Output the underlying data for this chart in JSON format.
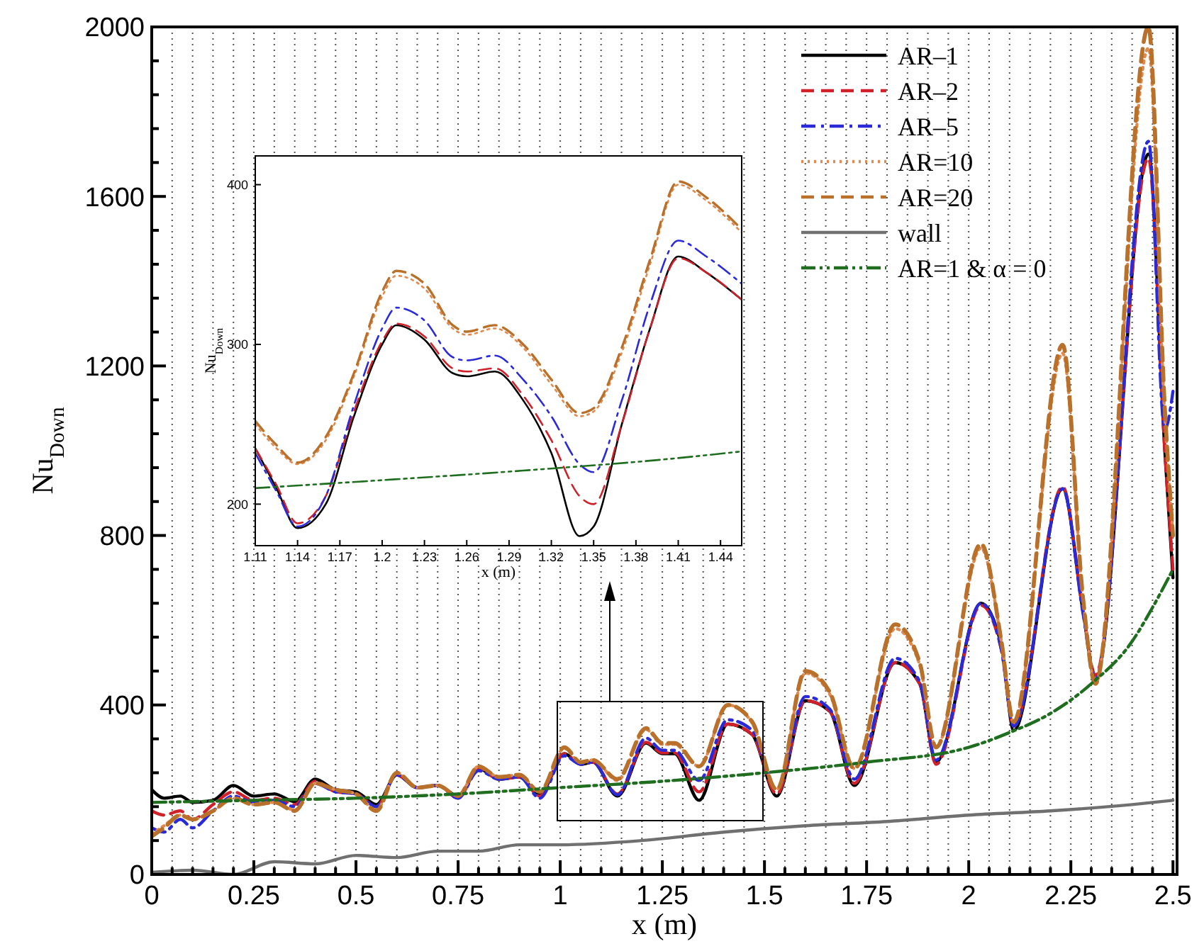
{
  "chart_data": [
    {
      "type": "line",
      "xlabel": "x (m)",
      "ylabel": "Nu$_{Down}$",
      "xlim": [
        0,
        2.51
      ],
      "ylim": [
        0,
        2000
      ],
      "xticks": [
        0,
        {
          "value": 0.05,
          "label": null
        },
        {
          "value": 0.1,
          "label": null
        },
        {
          "value": 0.15,
          "label": null
        },
        {
          "value": 0.2,
          "label": null
        },
        0.25,
        {
          "value": 0.3,
          "label": null
        },
        {
          "value": 0.35,
          "label": null
        },
        {
          "value": 0.4,
          "label": null
        },
        {
          "value": 0.45,
          "label": null
        },
        0.5,
        {
          "value": 0.55,
          "label": null
        },
        {
          "value": 0.6,
          "label": null
        },
        {
          "value": 0.65,
          "label": null
        },
        {
          "value": 0.7,
          "label": null
        },
        0.75,
        {
          "value": 0.8,
          "label": null
        },
        {
          "value": 0.85,
          "label": null
        },
        {
          "value": 0.9,
          "label": null
        },
        {
          "value": 0.95,
          "label": null
        },
        1,
        {
          "value": 1.05,
          "label": null
        },
        {
          "value": 1.1,
          "label": null
        },
        {
          "value": 1.15,
          "label": null
        },
        {
          "value": 1.2,
          "label": null
        },
        1.25,
        {
          "value": 1.3,
          "label": null
        },
        {
          "value": 1.35,
          "label": null
        },
        {
          "value": 1.4,
          "label": null
        },
        {
          "value": 1.45,
          "label": null
        },
        1.5,
        {
          "value": 1.55,
          "label": null
        },
        {
          "value": 1.6,
          "label": null
        },
        {
          "value": 1.65,
          "label": null
        },
        {
          "value": 1.7,
          "label": null
        },
        1.75,
        {
          "value": 1.8,
          "label": null
        },
        {
          "value": 1.85,
          "label": null
        },
        {
          "value": 1.9,
          "label": null
        },
        {
          "value": 1.95,
          "label": null
        },
        2,
        {
          "value": 2.05,
          "label": null
        },
        {
          "value": 2.1,
          "label": null
        },
        {
          "value": 2.15,
          "label": null
        },
        {
          "value": 2.2,
          "label": null
        },
        2.25,
        {
          "value": 2.3,
          "label": null
        },
        {
          "value": 2.35,
          "label": null
        },
        {
          "value": 2.4,
          "label": null
        },
        {
          "value": 2.45,
          "label": null
        },
        2.5
      ],
      "yticks": [
        0,
        {
          "value": 80,
          "label": null
        },
        {
          "value": 160,
          "label": null
        },
        {
          "value": 240,
          "label": null
        },
        {
          "value": 320,
          "label": null
        },
        400,
        {
          "value": 480,
          "label": null
        },
        {
          "value": 560,
          "label": null
        },
        {
          "value": 640,
          "label": null
        },
        {
          "value": 720,
          "label": null
        },
        800,
        {
          "value": 880,
          "label": null
        },
        {
          "value": 960,
          "label": null
        },
        {
          "value": 1040,
          "label": null
        },
        {
          "value": 1120,
          "label": null
        },
        1200,
        {
          "value": 1280,
          "label": null
        },
        {
          "value": 1360,
          "label": null
        },
        {
          "value": 1440,
          "label": null
        },
        {
          "value": 1520,
          "label": null
        },
        1600,
        {
          "value": 1680,
          "label": null
        },
        {
          "value": 1760,
          "label": null
        },
        {
          "value": 1840,
          "label": null
        },
        {
          "value": 1920,
          "label": null
        },
        2000
      ],
      "grid": "x",
      "legend": "top right",
      "series": [
        {
          "name": "AR–1",
          "color": "#000000",
          "line_style": "solid",
          "x": [
            0,
            0.03,
            0.07,
            0.1,
            0.15,
            0.2,
            0.25,
            0.3,
            0.35,
            0.4,
            0.45,
            0.5,
            0.55,
            0.6,
            0.65,
            0.7,
            0.75,
            0.8,
            0.85,
            0.9,
            0.95,
            1.01,
            1.05,
            1.08,
            1.14,
            1.21,
            1.25,
            1.28,
            1.34,
            1.41,
            1.47,
            1.53,
            1.6,
            1.66,
            1.72,
            1.82,
            1.88,
            1.92,
            2.03,
            2.08,
            2.11,
            2.23,
            2.28,
            2.31,
            2.44,
            2.48,
            2.5
          ],
          "values": [
            200,
            180,
            185,
            170,
            175,
            210,
            185,
            190,
            172,
            225,
            200,
            195,
            165,
            235,
            205,
            210,
            185,
            250,
            225,
            230,
            190,
            285,
            260,
            265,
            185,
            310,
            285,
            285,
            175,
            355,
            330,
            185,
            410,
            385,
            210,
            500,
            450,
            265,
            640,
            540,
            340,
            910,
            620,
            460,
            1700,
            1000,
            700
          ]
        },
        {
          "name": "AR–2",
          "color": "#d0202a",
          "line_style": "dashed",
          "x": [
            0,
            0.03,
            0.07,
            0.1,
            0.15,
            0.2,
            0.25,
            0.3,
            0.35,
            0.4,
            0.45,
            0.5,
            0.55,
            0.6,
            0.65,
            0.7,
            0.75,
            0.8,
            0.85,
            0.9,
            0.95,
            1.01,
            1.05,
            1.08,
            1.14,
            1.21,
            1.25,
            1.28,
            1.34,
            1.41,
            1.47,
            1.53,
            1.6,
            1.66,
            1.72,
            1.82,
            1.88,
            1.92,
            2.03,
            2.08,
            2.11,
            2.23,
            2.28,
            2.31,
            2.44,
            2.48,
            2.5
          ],
          "values": [
            150,
            140,
            150,
            130,
            165,
            195,
            175,
            180,
            165,
            220,
            195,
            190,
            160,
            235,
            205,
            210,
            180,
            250,
            225,
            230,
            185,
            285,
            260,
            265,
            190,
            312,
            287,
            287,
            195,
            355,
            330,
            190,
            410,
            385,
            215,
            500,
            450,
            260,
            635,
            530,
            350,
            915,
            620,
            470,
            1690,
            1000,
            720
          ]
        },
        {
          "name": "AR–5",
          "color": "#2a2ad8",
          "line_style": "dashdot",
          "x": [
            0,
            0.03,
            0.07,
            0.1,
            0.15,
            0.2,
            0.25,
            0.3,
            0.35,
            0.4,
            0.45,
            0.5,
            0.55,
            0.6,
            0.65,
            0.7,
            0.75,
            0.8,
            0.85,
            0.9,
            0.95,
            1.01,
            1.05,
            1.08,
            1.14,
            1.21,
            1.25,
            1.28,
            1.34,
            1.41,
            1.47,
            1.53,
            1.6,
            1.66,
            1.72,
            1.82,
            1.88,
            1.92,
            2.03,
            2.08,
            2.11,
            2.23,
            2.28,
            2.31,
            2.44,
            2.48,
            2.5
          ],
          "values": [
            110,
            100,
            130,
            110,
            150,
            185,
            170,
            175,
            160,
            215,
            195,
            190,
            160,
            235,
            205,
            210,
            180,
            245,
            225,
            230,
            180,
            280,
            260,
            265,
            188,
            322,
            293,
            293,
            222,
            365,
            340,
            200,
            420,
            390,
            225,
            510,
            455,
            270,
            640,
            530,
            350,
            910,
            615,
            460,
            1730,
            1050,
            1140
          ]
        },
        {
          "name": "AR=10",
          "color": "#e08a50",
          "line_style": "dotted",
          "x": [
            0,
            0.03,
            0.07,
            0.1,
            0.15,
            0.2,
            0.25,
            0.3,
            0.35,
            0.4,
            0.45,
            0.5,
            0.55,
            0.6,
            0.65,
            0.7,
            0.75,
            0.8,
            0.85,
            0.9,
            0.95,
            1.01,
            1.05,
            1.08,
            1.14,
            1.21,
            1.25,
            1.28,
            1.34,
            1.41,
            1.47,
            1.53,
            1.6,
            1.66,
            1.72,
            1.82,
            1.88,
            1.92,
            2.03,
            2.08,
            2.11,
            2.23,
            2.28,
            2.31,
            2.44,
            2.48,
            2.5
          ],
          "values": [
            95,
            115,
            140,
            130,
            150,
            180,
            165,
            170,
            152,
            215,
            200,
            190,
            152,
            240,
            205,
            210,
            185,
            255,
            230,
            235,
            195,
            298,
            264,
            270,
            222,
            342,
            307,
            307,
            255,
            400,
            358,
            200,
            475,
            425,
            250,
            580,
            495,
            300,
            770,
            550,
            360,
            1230,
            650,
            450,
            1950,
            1080,
            800
          ]
        },
        {
          "name": "AR=20",
          "color": "#b8702a",
          "line_style": "dashed",
          "x": [
            0,
            0.03,
            0.07,
            0.1,
            0.15,
            0.2,
            0.25,
            0.3,
            0.35,
            0.4,
            0.45,
            0.5,
            0.55,
            0.6,
            0.65,
            0.7,
            0.75,
            0.8,
            0.85,
            0.9,
            0.95,
            1.01,
            1.05,
            1.08,
            1.14,
            1.21,
            1.25,
            1.28,
            1.34,
            1.41,
            1.47,
            1.53,
            1.6,
            1.66,
            1.72,
            1.82,
            1.88,
            1.92,
            2.03,
            2.08,
            2.11,
            2.23,
            2.28,
            2.31,
            2.44,
            2.48,
            2.5
          ],
          "values": [
            90,
            110,
            140,
            130,
            150,
            180,
            165,
            170,
            150,
            215,
            200,
            190,
            150,
            240,
            205,
            210,
            185,
            255,
            230,
            235,
            195,
            300,
            265,
            270,
            225,
            345,
            310,
            310,
            255,
            400,
            360,
            200,
            480,
            430,
            250,
            590,
            500,
            300,
            780,
            550,
            360,
            1250,
            650,
            450,
            2000,
            1100,
            800
          ]
        },
        {
          "name": "wall",
          "color": "#707070",
          "line_style": "solid",
          "x": [
            0,
            0.1,
            0.2,
            0.3,
            0.4,
            0.5,
            0.6,
            0.7,
            0.8,
            0.9,
            1,
            1.2,
            1.4,
            1.6,
            1.8,
            2,
            2.2,
            2.4,
            2.5
          ],
          "values": [
            5,
            10,
            0,
            30,
            25,
            45,
            40,
            55,
            55,
            70,
            70,
            80,
            100,
            115,
            125,
            140,
            150,
            165,
            175
          ]
        },
        {
          "name": "AR=1 & α = 0",
          "color": "#1f6e1f",
          "line_style": "dashdotdot",
          "x": [
            0,
            0.25,
            0.5,
            0.75,
            1,
            1.25,
            1.5,
            1.75,
            2,
            2.1,
            2.2,
            2.3,
            2.4,
            2.45,
            2.5
          ],
          "values": [
            170,
            175,
            180,
            190,
            205,
            220,
            240,
            265,
            300,
            335,
            380,
            450,
            550,
            630,
            720
          ]
        }
      ]
    },
    {
      "type": "line",
      "xlabel": "x (m)",
      "ylabel": "Nu$_{Down}$",
      "xlim": [
        1.11,
        1.455
      ],
      "ylim": [
        174,
        418
      ],
      "xticks": [
        1.11,
        1.14,
        1.17,
        1.2,
        1.23,
        1.26,
        1.29,
        1.32,
        1.35,
        1.38,
        1.41,
        1.44
      ],
      "yticks": [
        200,
        300,
        400
      ],
      "series": [
        {
          "color": "#000000",
          "line_style": "solid",
          "x": [
            1.11,
            1.125,
            1.14,
            1.16,
            1.18,
            1.2,
            1.21,
            1.23,
            1.25,
            1.26,
            1.28,
            1.3,
            1.32,
            1.34,
            1.35,
            1.37,
            1.39,
            1.41,
            1.43,
            1.455
          ],
          "values": [
            235,
            210,
            185,
            200,
            255,
            300,
            312,
            303,
            282,
            280,
            283,
            265,
            232,
            180,
            186,
            250,
            310,
            355,
            345,
            328
          ]
        },
        {
          "color": "#d0202a",
          "line_style": "dashed",
          "x": [
            1.11,
            1.125,
            1.14,
            1.16,
            1.18,
            1.2,
            1.21,
            1.23,
            1.25,
            1.26,
            1.28,
            1.3,
            1.32,
            1.34,
            1.35,
            1.37,
            1.39,
            1.41,
            1.43,
            1.455
          ],
          "values": [
            235,
            212,
            188,
            205,
            258,
            302,
            313,
            305,
            285,
            283,
            285,
            268,
            240,
            205,
            200,
            250,
            310,
            354,
            345,
            328
          ]
        },
        {
          "color": "#2a2ad8",
          "line_style": "dashdot",
          "x": [
            1.11,
            1.125,
            1.14,
            1.16,
            1.18,
            1.2,
            1.21,
            1.23,
            1.25,
            1.26,
            1.28,
            1.3,
            1.32,
            1.34,
            1.35,
            1.37,
            1.39,
            1.41,
            1.43,
            1.455
          ],
          "values": [
            232,
            208,
            186,
            205,
            262,
            310,
            323,
            315,
            292,
            290,
            293,
            278,
            255,
            225,
            220,
            265,
            325,
            365,
            355,
            338
          ]
        },
        {
          "color": "#e08a50",
          "line_style": "dotted",
          "x": [
            1.11,
            1.125,
            1.14,
            1.16,
            1.18,
            1.2,
            1.21,
            1.23,
            1.25,
            1.26,
            1.28,
            1.3,
            1.32,
            1.34,
            1.35,
            1.37,
            1.39,
            1.41,
            1.43,
            1.455
          ],
          "values": [
            250,
            235,
            225,
            240,
            280,
            330,
            343,
            335,
            310,
            306,
            310,
            298,
            275,
            255,
            258,
            295,
            350,
            400,
            390,
            370
          ]
        },
        {
          "color": "#b8702a",
          "line_style": "dashed",
          "x": [
            1.11,
            1.125,
            1.14,
            1.16,
            1.18,
            1.2,
            1.21,
            1.23,
            1.25,
            1.26,
            1.28,
            1.3,
            1.32,
            1.34,
            1.35,
            1.37,
            1.39,
            1.41,
            1.43,
            1.455
          ],
          "values": [
            252,
            237,
            226,
            242,
            282,
            333,
            346,
            338,
            312,
            308,
            312,
            300,
            278,
            257,
            260,
            298,
            353,
            402,
            392,
            372
          ]
        },
        {
          "color": "#1f6e1f",
          "line_style": "dashdotdot",
          "x": [
            1.11,
            1.2,
            1.3,
            1.4,
            1.455
          ],
          "values": [
            210,
            215,
            221,
            228,
            233
          ]
        }
      ]
    }
  ]
}
